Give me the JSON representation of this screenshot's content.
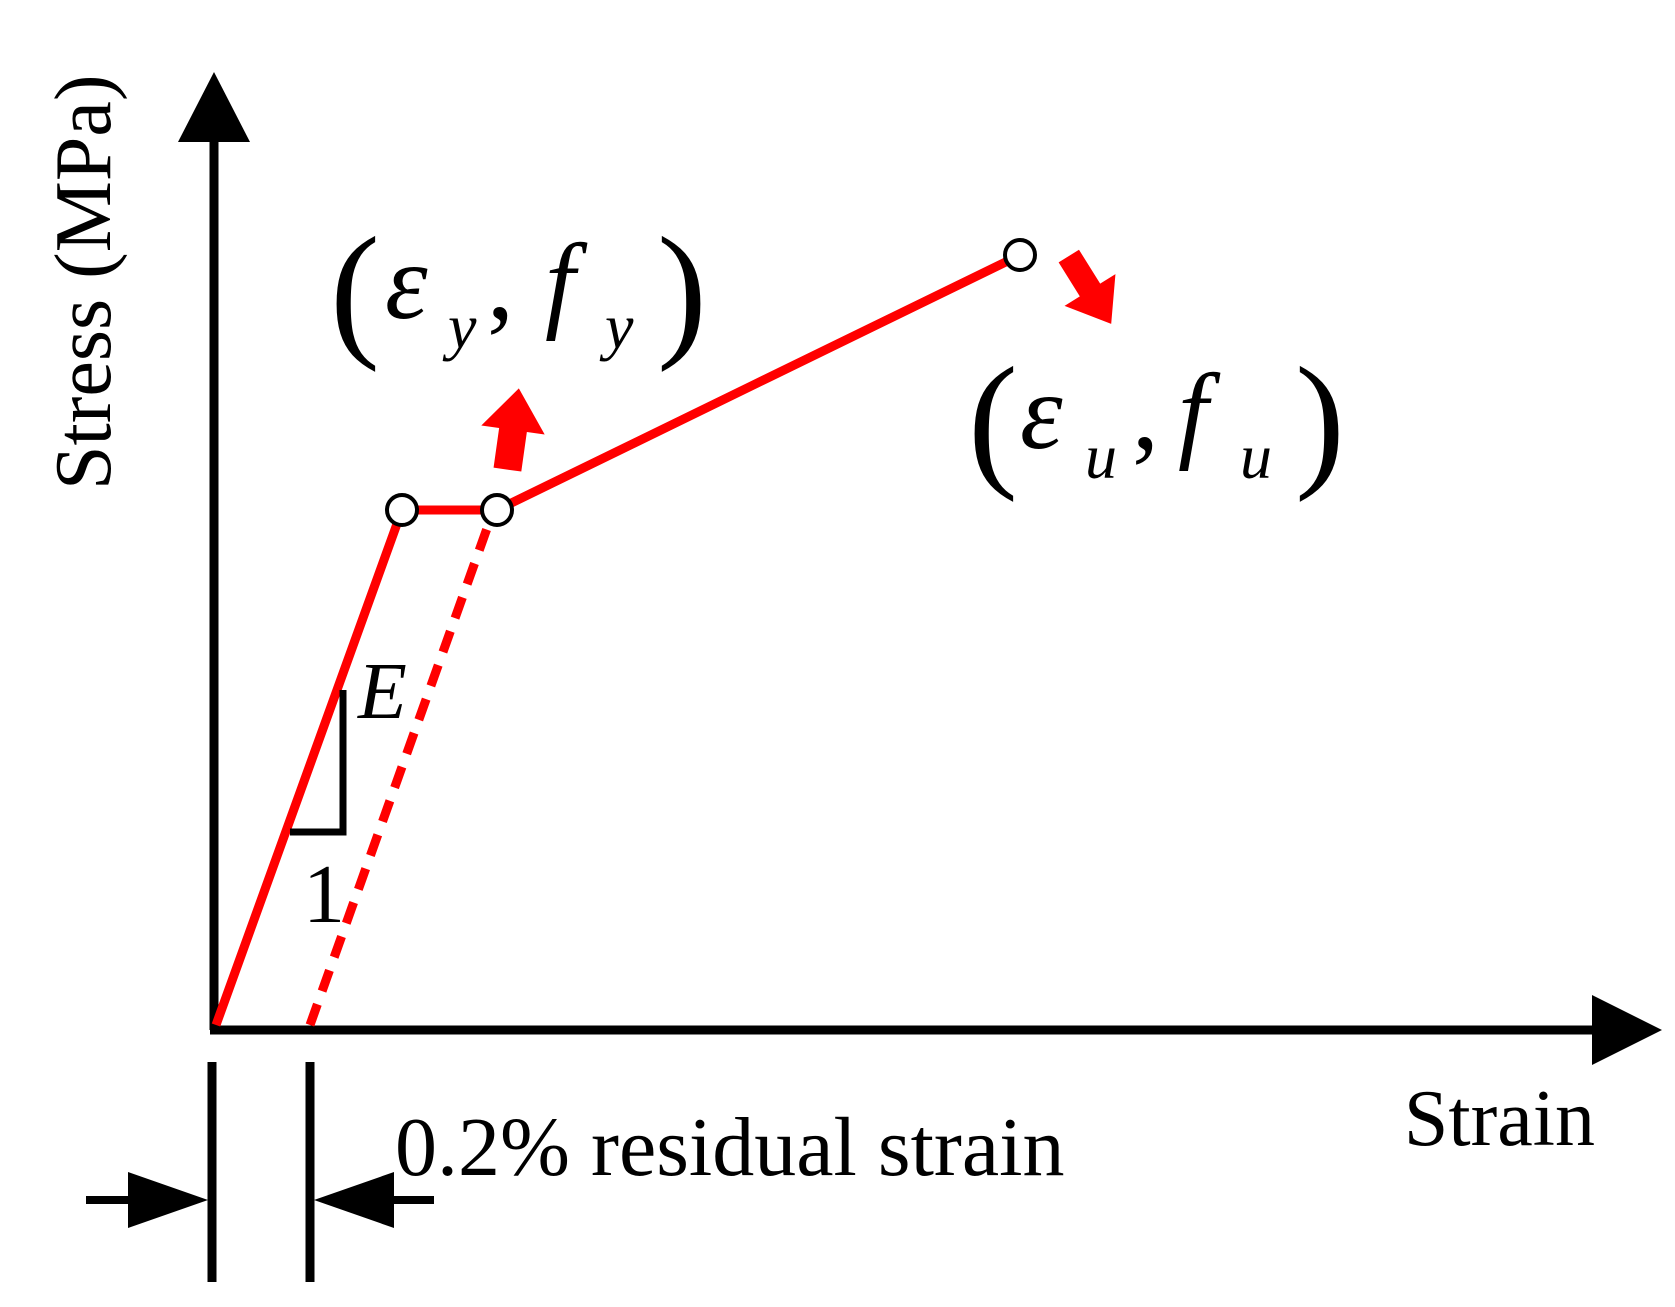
{
  "axes": {
    "y_label": "Stress (MPa)",
    "x_label": "Strain"
  },
  "annotations": {
    "yield_point": {
      "eps": "ε",
      "eps_sub": "y",
      "comma": ",",
      "f": "f",
      "f_sub": "y"
    },
    "ultimate_point": {
      "eps": "ε",
      "eps_sub": "u",
      "comma": ",",
      "f": "f",
      "f_sub": "u"
    },
    "modulus_label": "E",
    "slope_run_label": "1",
    "residual_label": "0.2% residual strain"
  },
  "colors": {
    "curve": "#ff0000",
    "axes": "#000000",
    "markers_fill": "#ffffff"
  }
}
